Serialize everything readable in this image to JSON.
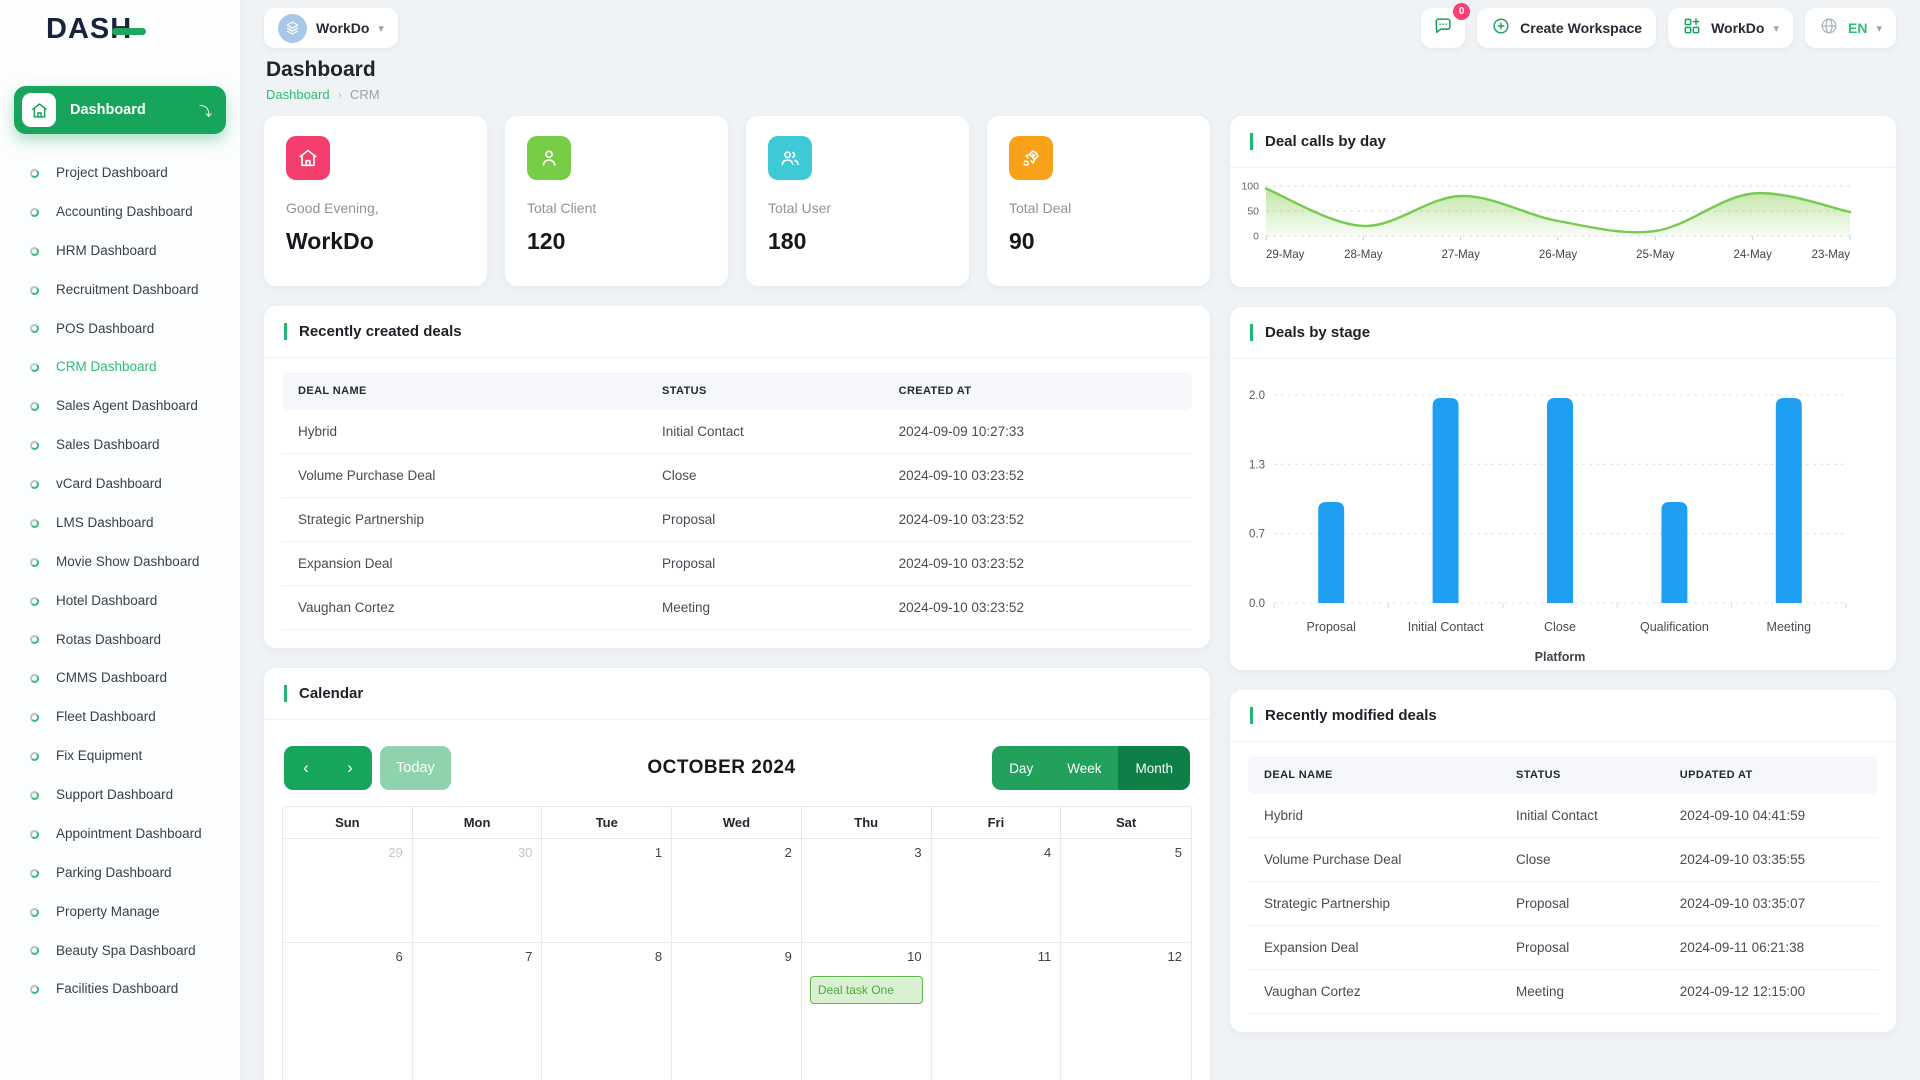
{
  "brand": {
    "logo_text_main": "DAS",
    "logo_text_h": "H"
  },
  "topbar": {
    "workspace": {
      "name": "WorkDo"
    },
    "chat_badge": "0",
    "create_workspace_label": "Create Workspace",
    "workdo_menu_label": "WorkDo",
    "language": "EN"
  },
  "sidebar": {
    "root_label": "Dashboard",
    "items": [
      {
        "label": "Project Dashboard"
      },
      {
        "label": "Accounting Dashboard"
      },
      {
        "label": "HRM Dashboard"
      },
      {
        "label": "Recruitment Dashboard"
      },
      {
        "label": "POS Dashboard"
      },
      {
        "label": "CRM Dashboard",
        "active": true
      },
      {
        "label": "Sales Agent Dashboard"
      },
      {
        "label": "Sales Dashboard"
      },
      {
        "label": "vCard Dashboard"
      },
      {
        "label": "LMS Dashboard"
      },
      {
        "label": "Movie Show Dashboard"
      },
      {
        "label": "Hotel Dashboard"
      },
      {
        "label": "Rotas Dashboard"
      },
      {
        "label": "CMMS Dashboard"
      },
      {
        "label": "Fleet Dashboard"
      },
      {
        "label": "Fix Equipment"
      },
      {
        "label": "Support Dashboard"
      },
      {
        "label": "Appointment Dashboard"
      },
      {
        "label": "Parking Dashboard"
      },
      {
        "label": "Property Manage"
      },
      {
        "label": "Beauty Spa Dashboard"
      },
      {
        "label": "Facilities Dashboard"
      }
    ]
  },
  "page": {
    "title": "Dashboard",
    "breadcrumb": {
      "root": "Dashboard",
      "current": "CRM"
    }
  },
  "stats": [
    {
      "label": "Good Evening,",
      "value": "WorkDo",
      "icon": "home-icon",
      "color": "#f43f6e"
    },
    {
      "label": "Total Client",
      "value": "120",
      "icon": "user-icon",
      "color": "#77ce46"
    },
    {
      "label": "Total User",
      "value": "180",
      "icon": "users-icon",
      "color": "#3ec9d6"
    },
    {
      "label": "Total Deal",
      "value": "90",
      "icon": "rocket-icon",
      "color": "#f9a219"
    }
  ],
  "recently_created": {
    "title": "Recently created deals",
    "headers": [
      "Deal Name",
      "Status",
      "Created At"
    ],
    "rows": [
      [
        "Hybrid",
        "Initial Contact",
        "2024-09-09 10:27:33"
      ],
      [
        "Volume Purchase Deal",
        "Close",
        "2024-09-10 03:23:52"
      ],
      [
        "Strategic Partnership",
        "Proposal",
        "2024-09-10 03:23:52"
      ],
      [
        "Expansion Deal",
        "Proposal",
        "2024-09-10 03:23:52"
      ],
      [
        "Vaughan Cortez",
        "Meeting",
        "2024-09-10 03:23:52"
      ]
    ]
  },
  "recently_modified": {
    "title": "Recently modified deals",
    "headers": [
      "Deal Name",
      "Status",
      "Updated At"
    ],
    "rows": [
      [
        "Hybrid",
        "Initial Contact",
        "2024-09-10 04:41:59"
      ],
      [
        "Volume Purchase Deal",
        "Close",
        "2024-09-10 03:35:55"
      ],
      [
        "Strategic Partnership",
        "Proposal",
        "2024-09-10 03:35:07"
      ],
      [
        "Expansion Deal",
        "Proposal",
        "2024-09-11 06:21:38"
      ],
      [
        "Vaughan Cortez",
        "Meeting",
        "2024-09-12 12:15:00"
      ]
    ]
  },
  "calendar": {
    "title": "Calendar",
    "toolbar": {
      "today": "Today",
      "month_title": "OCTOBER 2024",
      "views": [
        "Day",
        "Week",
        "Month"
      ],
      "active_view": "Month"
    },
    "day_headers": [
      "Sun",
      "Mon",
      "Tue",
      "Wed",
      "Thu",
      "Fri",
      "Sat"
    ],
    "weeks": [
      [
        {
          "n": "29",
          "muted": true
        },
        {
          "n": "30",
          "muted": true
        },
        {
          "n": "1"
        },
        {
          "n": "2"
        },
        {
          "n": "3"
        },
        {
          "n": "4"
        },
        {
          "n": "5"
        }
      ],
      [
        {
          "n": "6"
        },
        {
          "n": "7"
        },
        {
          "n": "8"
        },
        {
          "n": "9"
        },
        {
          "n": "10",
          "event": "Deal task One"
        },
        {
          "n": "11"
        },
        {
          "n": "12"
        }
      ]
    ]
  },
  "chart_data": [
    {
      "id": "deal_calls_by_day",
      "type": "area",
      "title": "Deal calls by day",
      "x": [
        "29-May",
        "28-May",
        "27-May",
        "26-May",
        "25-May",
        "24-May",
        "23-May"
      ],
      "values": [
        95,
        20,
        80,
        30,
        10,
        85,
        48
      ],
      "ylim": [
        0,
        100
      ],
      "yticks": [
        0,
        50,
        100
      ],
      "line_color": "#77c94f",
      "fill_color": "#8cce5a",
      "grid": "dashed-horizontal",
      "legend": "none"
    },
    {
      "id": "deals_by_stage",
      "type": "bar",
      "title": "Deals by stage",
      "categories": [
        "Proposal",
        "Initial Contact",
        "Close",
        "Qualification",
        "Meeting"
      ],
      "values": [
        1,
        2,
        2,
        1,
        2
      ],
      "xlabel": "Platform",
      "ylim": [
        0,
        2
      ],
      "yticks": [
        0,
        0.6667,
        1.3333,
        2
      ],
      "ytick_labels": [
        "0.0",
        "0.7",
        "1.3",
        "2.0"
      ],
      "bar_color": "#1e9ff2",
      "grid": "dashed-horizontal",
      "legend": "none"
    }
  ],
  "colors": {
    "primary_green": "#17a45b",
    "dark_green": "#0e7f47",
    "light_green": "#8fd3ac",
    "link_green": "#2ebd74",
    "badge_pink": "#ff3e71",
    "bar_blue": "#1e9ff2",
    "area_green": "#77c94f"
  }
}
